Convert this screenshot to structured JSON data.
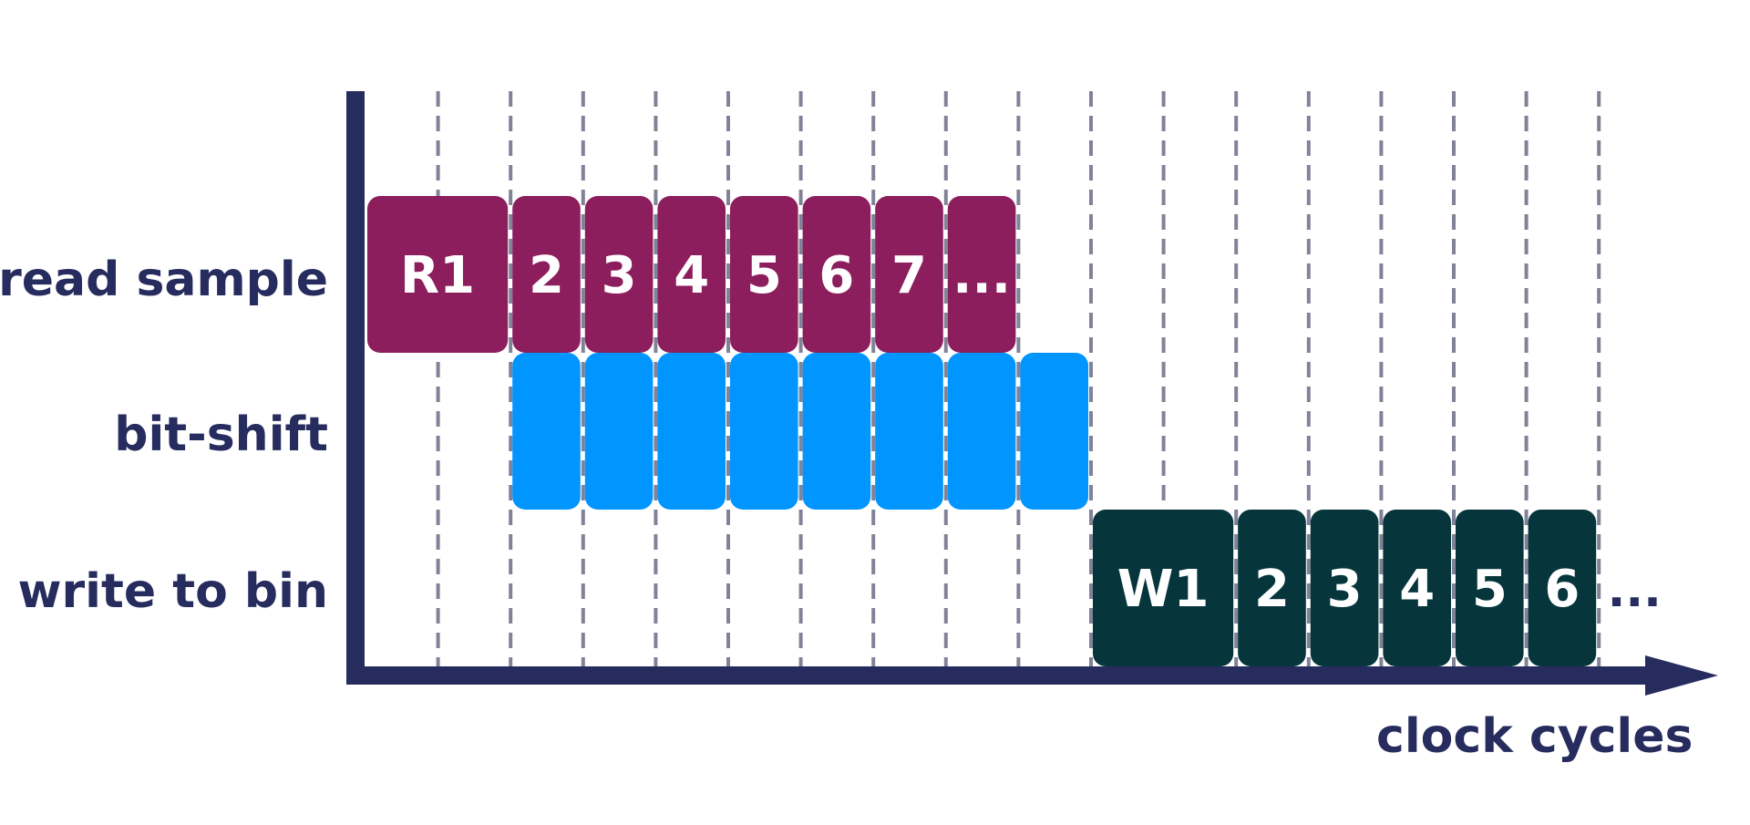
{
  "colors": {
    "axis": "#272c5e",
    "grid": "#808397",
    "read": "#8c1e5e",
    "shift": "#0095ff",
    "write": "#06363c",
    "box_text": "#ffffff",
    "text": "#272c5e"
  },
  "rows": {
    "read": {
      "label": "read sample"
    },
    "shift": {
      "label": "bit-shift"
    },
    "write": {
      "label": "write to bin"
    }
  },
  "axis": {
    "x_label": "clock cycles"
  },
  "read_boxes": [
    {
      "start": 0,
      "span": 2,
      "label": "R1"
    },
    {
      "start": 2,
      "span": 1,
      "label": "2"
    },
    {
      "start": 3,
      "span": 1,
      "label": "3"
    },
    {
      "start": 4,
      "span": 1,
      "label": "4"
    },
    {
      "start": 5,
      "span": 1,
      "label": "5"
    },
    {
      "start": 6,
      "span": 1,
      "label": "6"
    },
    {
      "start": 7,
      "span": 1,
      "label": "7"
    },
    {
      "start": 8,
      "span": 1,
      "label": "..."
    }
  ],
  "shift_boxes": [
    {
      "start": 2,
      "span": 1
    },
    {
      "start": 3,
      "span": 1
    },
    {
      "start": 4,
      "span": 1
    },
    {
      "start": 5,
      "span": 1
    },
    {
      "start": 6,
      "span": 1
    },
    {
      "start": 7,
      "span": 1
    },
    {
      "start": 8,
      "span": 1
    },
    {
      "start": 9,
      "span": 1
    }
  ],
  "write_boxes": [
    {
      "start": 10,
      "span": 2,
      "label": "W1"
    },
    {
      "start": 12,
      "span": 1,
      "label": "2"
    },
    {
      "start": 13,
      "span": 1,
      "label": "3"
    },
    {
      "start": 14,
      "span": 1,
      "label": "4"
    },
    {
      "start": 15,
      "span": 1,
      "label": "5"
    },
    {
      "start": 16,
      "span": 1,
      "label": "6"
    }
  ],
  "write_tail": "...",
  "cycle_lines": 17
}
